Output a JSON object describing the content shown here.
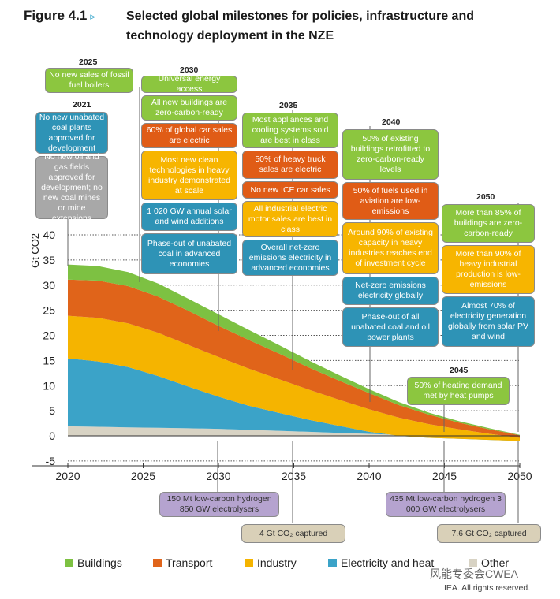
{
  "figure": {
    "label": "Figure 4.1",
    "arrow": "▹",
    "title": "Selected global milestones for policies, infrastructure and technology deployment in the NZE"
  },
  "colors": {
    "buildings": "#7dc142",
    "transport": "#e0641a",
    "industry": "#f5b400",
    "electricity_heat": "#3ba3c8",
    "other": "#d8d3c4",
    "box_green": "#8cc63f",
    "box_orange": "#e05c16",
    "box_yellow": "#f7b500",
    "box_blue": "#2e93b6",
    "box_grey": "#a8a8a8",
    "box_purple": "#b5a3cf",
    "box_tan": "#d9d0b8"
  },
  "chart_data": {
    "type": "area",
    "title": "Selected global milestones for policies, infrastructure and technology deployment in the NZE",
    "ylabel": "Gt CO2",
    "xlabel": "",
    "ylim": [
      -5,
      40
    ],
    "yticks": [
      "-5",
      "0",
      "5",
      "10",
      "15",
      "20",
      "25",
      "30",
      "35",
      "40"
    ],
    "xticks": [
      "2020",
      "2025",
      "2030",
      "2035",
      "2040",
      "2045",
      "2050"
    ],
    "x": [
      2020,
      2022,
      2024,
      2026,
      2028,
      2030,
      2032,
      2034,
      2036,
      2038,
      2040,
      2042,
      2044,
      2046,
      2048,
      2050
    ],
    "series": [
      {
        "name": "Other",
        "color_key": "other",
        "values": [
          1.9,
          1.8,
          1.7,
          1.6,
          1.5,
          1.4,
          1.2,
          1.0,
          0.8,
          0.6,
          0.4,
          0.2,
          0.0,
          -0.2,
          -0.4,
          -0.6
        ]
      },
      {
        "name": "Electricity and heat",
        "color_key": "electricity_heat",
        "values": [
          13.5,
          13.0,
          12.0,
          10.3,
          8.3,
          6.4,
          4.8,
          3.6,
          2.4,
          1.4,
          0.4,
          -0.2,
          -0.4,
          -0.4,
          -0.4,
          -0.4
        ]
      },
      {
        "name": "Industry",
        "color_key": "industry",
        "values": [
          8.5,
          8.7,
          8.7,
          8.6,
          8.3,
          7.9,
          7.4,
          6.7,
          6.0,
          5.2,
          4.5,
          3.6,
          2.7,
          1.9,
          1.2,
          0.6
        ]
      },
      {
        "name": "Transport",
        "color_key": "transport",
        "values": [
          7.2,
          7.4,
          7.4,
          7.2,
          6.8,
          6.2,
          5.7,
          5.1,
          4.4,
          3.8,
          3.2,
          2.5,
          1.9,
          1.3,
          0.9,
          0.5
        ]
      },
      {
        "name": "Buildings",
        "color_key": "buildings",
        "values": [
          3.0,
          2.9,
          2.8,
          2.6,
          2.4,
          2.3,
          2.0,
          1.7,
          1.4,
          1.1,
          0.8,
          0.6,
          0.4,
          0.3,
          0.2,
          0.1
        ]
      }
    ],
    "legend": [
      "Buildings",
      "Transport",
      "Industry",
      "Electricity and heat",
      "Other"
    ],
    "legend_position": "bottom"
  },
  "milestones": {
    "y2021": {
      "year": "2021",
      "items": [
        {
          "text": "No new unabated coal plants approved for development",
          "color": "blue"
        },
        {
          "text": "No new oil and gas fields approved for development; no new coal mines or mine extensions",
          "color": "grey"
        }
      ]
    },
    "y2025": {
      "year": "2025",
      "items": [
        {
          "text": "No new sales of fossil fuel boilers",
          "color": "green"
        }
      ]
    },
    "y2030": {
      "year": "2030",
      "items": [
        {
          "text": "Universal energy access",
          "color": "green"
        },
        {
          "text": "All new buildings are zero-carbon-ready",
          "color": "green"
        },
        {
          "text": "60% of global car sales are electric",
          "color": "orange"
        },
        {
          "text": "Most new clean technologies in heavy industry demonstrated at scale",
          "color": "yellow"
        },
        {
          "text": "1 020 GW annual solar and wind additions",
          "color": "blue"
        },
        {
          "text": "Phase-out of unabated coal in advanced economies",
          "color": "blue"
        }
      ]
    },
    "y2035": {
      "year": "2035",
      "items": [
        {
          "text": "Most appliances and cooling systems sold are best in class",
          "color": "green"
        },
        {
          "text": "50% of heavy truck sales are electric",
          "color": "orange"
        },
        {
          "text": "No new ICE car sales",
          "color": "orange"
        },
        {
          "text": "All industrial electric motor sales are best in class",
          "color": "yellow"
        },
        {
          "text": "Overall net-zero emissions electricity in advanced economies",
          "color": "blue"
        }
      ]
    },
    "y2040": {
      "year": "2040",
      "items": [
        {
          "text": "50% of existing buildings retrofitted to zero-carbon-ready levels",
          "color": "green"
        },
        {
          "text": "50% of fuels used in aviation are low-emissions",
          "color": "orange"
        },
        {
          "text": "Around 90% of existing capacity in heavy industries reaches end of investment cycle",
          "color": "yellow"
        },
        {
          "text": "Net-zero emissions electricity globally",
          "color": "blue"
        },
        {
          "text": "Phase-out of all unabated coal and oil power plants",
          "color": "blue"
        }
      ]
    },
    "y2045": {
      "year": "2045",
      "items": [
        {
          "text": "50% of heating demand met by heat pumps",
          "color": "green"
        }
      ]
    },
    "y2050": {
      "year": "2050",
      "items": [
        {
          "text": "More than 85% of buildings are zero-carbon-ready",
          "color": "green"
        },
        {
          "text": "More than 90% of heavy industrial production is low-emissions",
          "color": "yellow"
        },
        {
          "text": "Almost 70% of electricity generation globally from solar PV and wind",
          "color": "blue"
        }
      ]
    },
    "below": {
      "hydrogen_2030": "150 Mt low-carbon hydrogen 850 GW electrolysers",
      "capture_2035": "4 Gt CO₂ captured",
      "hydrogen_2045": "435 Mt low-carbon hydrogen 3 000 GW electrolysers",
      "capture_2050": "7.6 Gt CO₂ captured"
    }
  },
  "footer": {
    "watermark": "风能专委会CWEA",
    "copyright": "IEA. All rights reserved."
  }
}
